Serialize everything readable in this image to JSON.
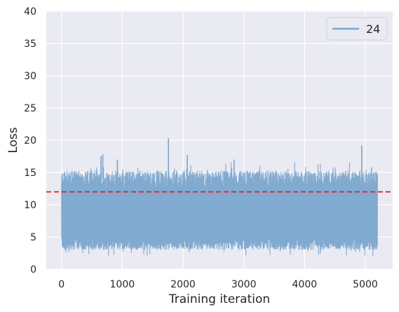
{
  "chart_data": {
    "type": "line",
    "title": "",
    "xlabel": "Training iteration",
    "ylabel": "Loss",
    "xlim": [
      -250,
      5450
    ],
    "ylim": [
      0,
      40
    ],
    "x_ticks": [
      0,
      1000,
      2000,
      3000,
      4000,
      5000
    ],
    "y_ticks": [
      0,
      5,
      10,
      15,
      20,
      25,
      30,
      35,
      40
    ],
    "grid": true,
    "legend": {
      "placement": "top-right",
      "entries": [
        "24"
      ]
    },
    "series": [
      {
        "name": "24",
        "color": "#7ba6cf",
        "x_range": [
          0,
          5200
        ],
        "samples": 5200,
        "typical_low": 3.5,
        "typical_high": 15,
        "min": 2,
        "max": 20.3,
        "notable_points": [
          {
            "x": 650,
            "y": 17.5
          },
          {
            "x": 680,
            "y": 17.8
          },
          {
            "x": 920,
            "y": 17.0
          },
          {
            "x": 1760,
            "y": 20.3
          },
          {
            "x": 2070,
            "y": 17.7
          },
          {
            "x": 2840,
            "y": 17.0
          },
          {
            "x": 4940,
            "y": 19.2
          },
          {
            "x": 5100,
            "y": 15.8
          }
        ]
      }
    ],
    "reference_lines": [
      {
        "orientation": "horizontal",
        "y": 12,
        "color": "#e31a1c",
        "style": "dashed"
      }
    ],
    "background_color": "#eaeaf2",
    "grid_color": "#ffffff"
  }
}
